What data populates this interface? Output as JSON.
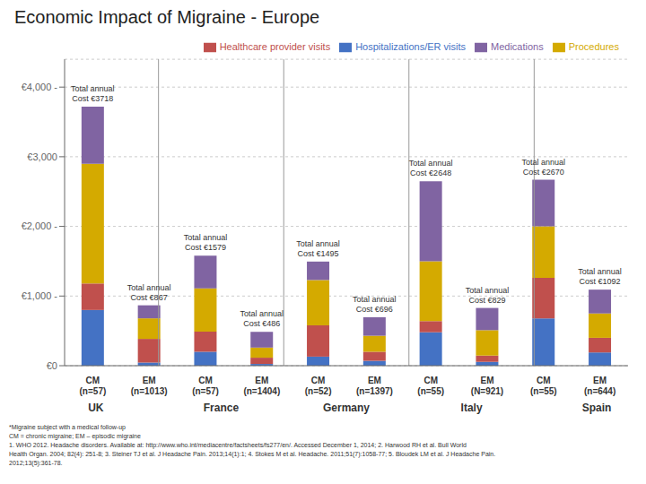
{
  "chart_data": {
    "type": "bar",
    "title": "Economic Impact of Migraine - Europe",
    "stacked": true,
    "categories": [
      "CM\n(n=57)",
      "EM\n(n=1013)",
      "CM\n(n=57)",
      "EM\n(n=1404)",
      "CM\n(n=52)",
      "EM\n(n=1397)",
      "CM\n(n=55)",
      "EM\n(N=921)",
      "CM\n(n=55)",
      "EM\n(n=644)"
    ],
    "groups": [
      "UK",
      "France",
      "Germany",
      "Italy",
      "Spain"
    ],
    "series": [
      {
        "name": "Hospitalizations/ER visits",
        "color": "#4472c4",
        "values": [
          800,
          45,
          200,
          25,
          130,
          70,
          480,
          55,
          680,
          190
        ]
      },
      {
        "name": "Healthcare provider visits",
        "color": "#c0504d",
        "values": [
          380,
          340,
          290,
          90,
          450,
          130,
          160,
          90,
          580,
          210
        ]
      },
      {
        "name": "Procedures",
        "color": "#d4aa00",
        "values": [
          1720,
          295,
          620,
          145,
          650,
          230,
          860,
          365,
          740,
          350
        ]
      },
      {
        "name": "Medications",
        "color": "#8064a2",
        "values": [
          818,
          187,
          469,
          226,
          265,
          266,
          1148,
          319,
          670,
          342
        ]
      }
    ],
    "annotations": [
      "Total annual\nCost €3718",
      "Total annual\nCost €867",
      "Total annual\nCost €1579",
      "Total annual\nCost €486",
      "Total annual\nCost €1495",
      "Total annual\nCost €696",
      "Total annual\nCost €2648",
      "Total annual\nCost €829",
      "Total annual\nCost €2670",
      "Total annual\nCost €1092"
    ],
    "ylim": [
      0,
      4400
    ],
    "yticks": [
      {
        "value": 0,
        "label": "€0"
      },
      {
        "value": 1000,
        "label": "€1,000 -"
      },
      {
        "value": 2000,
        "label": "€2,000 -"
      },
      {
        "value": 3000,
        "label": "€3,000"
      },
      {
        "value": 4000,
        "label": "€4,000 -"
      }
    ],
    "grid": true,
    "legend": "upper right",
    "footnotes": [
      "*Migraine subject with a medical follow-up",
      "CM = chronic migraine; EM – episodic migraine",
      "1. WHO 2012. Headache disorders. Available at: http://www.who.int/mediacentre/factsheets/fs277/en/. Accessed December 1, 2014; 2. Harwood RH et al. Bull World",
      "Health Organ. 2004; 82(4): 251-8; 3. Steiner TJ et al. J Headache Pain. 2013;14(1):1; 4. Stokes M et al. Headache. 2011;51(7):1058-77; 5. Bloudek LM et al. J Headache Pain.",
      "2012;13(5):361-78."
    ]
  }
}
